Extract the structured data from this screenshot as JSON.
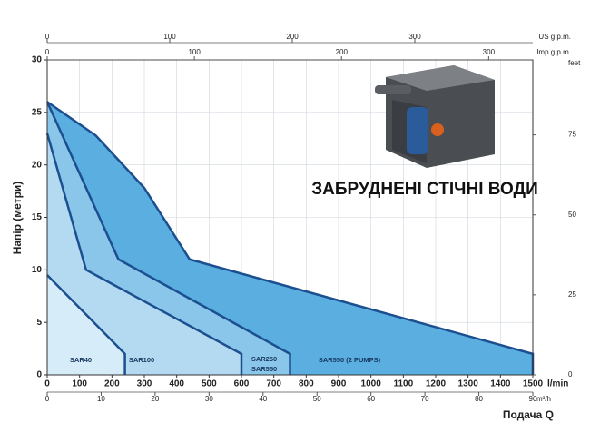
{
  "chart_data": {
    "type": "area-line",
    "title": "ЗАБРУДНЕНІ СТІЧНІ ВОДИ",
    "ylabel": "Напір (метри)",
    "xlabel": "Подача Q",
    "xunit": "l/min",
    "xlim": [
      0,
      1500
    ],
    "xticks": [
      0,
      100,
      200,
      300,
      400,
      500,
      600,
      700,
      800,
      900,
      1000,
      1100,
      1200,
      1300,
      1400,
      1500
    ],
    "ylim": [
      0,
      30
    ],
    "yticks": [
      0,
      5,
      10,
      15,
      20,
      25,
      30
    ],
    "grid": true,
    "x2_bottom": {
      "unit": "m³/h",
      "lim": [
        0,
        90
      ],
      "ticks": [
        0,
        10,
        20,
        30,
        40,
        50,
        60,
        70,
        80,
        90
      ]
    },
    "x_top_us": {
      "unit": "US g.p.m.",
      "lim": [
        0,
        396.3
      ],
      "ticks": [
        0,
        100,
        200,
        300
      ]
    },
    "x_top_imp": {
      "unit": "Imp g.p.m.",
      "lim": [
        0,
        330
      ],
      "ticks": [
        0,
        100,
        200,
        300
      ]
    },
    "y2": {
      "unit": "feet",
      "lim": [
        0,
        98.43
      ],
      "ticks": [
        0,
        25,
        50,
        75
      ]
    },
    "line_color": "#1c4f8f",
    "series": [
      {
        "labels": [
          "SAR40"
        ],
        "color": "#d6ecf8",
        "x": [
          0,
          240,
          240
        ],
        "values": [
          9.5,
          2,
          0
        ]
      },
      {
        "labels": [
          "SAR100"
        ],
        "color": "#b3daf0",
        "x": [
          0,
          120,
          600,
          600
        ],
        "values": [
          23,
          10,
          2,
          0
        ]
      },
      {
        "labels": [
          "SAR250",
          "SAR550"
        ],
        "color": "#8ac6ea",
        "x": [
          0,
          220,
          750,
          750
        ],
        "values": [
          26,
          11,
          2,
          0
        ]
      },
      {
        "labels": [
          "SAR550 (2 PUMPS)"
        ],
        "color": "#5aaee0",
        "x": [
          0,
          150,
          300,
          440,
          1500,
          1500
        ],
        "values": [
          26,
          22.8,
          17.8,
          11,
          2,
          0
        ]
      }
    ]
  }
}
